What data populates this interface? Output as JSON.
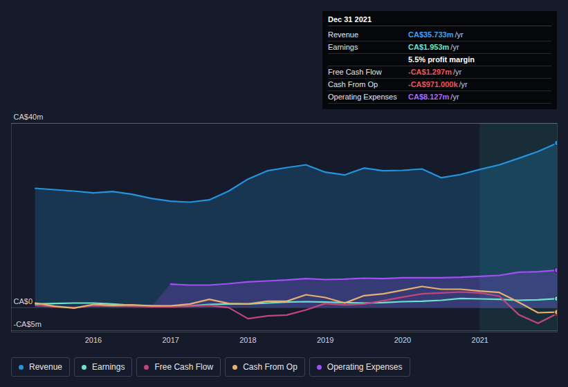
{
  "chart_data": {
    "type": "line",
    "x": [
      2015.25,
      2015.5,
      2015.75,
      2016.0,
      2016.25,
      2016.5,
      2016.75,
      2017.0,
      2017.25,
      2017.5,
      2017.75,
      2018.0,
      2018.25,
      2018.5,
      2018.75,
      2019.0,
      2019.25,
      2019.5,
      2019.75,
      2020.0,
      2020.25,
      2020.5,
      2020.75,
      2021.0,
      2021.25,
      2021.5,
      2021.75,
      2022.0
    ],
    "xlim": [
      2014.94,
      2022.0
    ],
    "xticks": [
      2016,
      2017,
      2018,
      2019,
      2020,
      2021
    ],
    "ylim": [
      -5.3,
      40
    ],
    "yticks": [
      {
        "value": -5,
        "label": "-CA$5m"
      },
      {
        "value": 0,
        "label": "CA$0"
      },
      {
        "value": 40,
        "label": "CA$40m"
      }
    ],
    "grid": true,
    "legend": "bottom",
    "shaded_range": [
      2021,
      2022.0
    ],
    "series": [
      {
        "name": "Revenue",
        "color": "#2394df",
        "type": "area",
        "values": [
          25.9,
          25.6,
          25.3,
          24.9,
          25.2,
          24.6,
          23.7,
          23.1,
          22.9,
          23.4,
          25.3,
          27.9,
          29.7,
          30.4,
          31.0,
          29.4,
          28.8,
          30.3,
          29.7,
          29.8,
          30.1,
          28.2,
          28.9,
          30.0,
          31.0,
          32.4,
          33.9,
          35.733
        ]
      },
      {
        "name": "Earnings",
        "color": "#6fe3c8",
        "type": "line",
        "values": [
          0.8,
          0.9,
          1.0,
          1.0,
          0.8,
          0.5,
          0.4,
          0.3,
          0.4,
          0.7,
          0.8,
          0.8,
          1.0,
          1.2,
          1.3,
          1.2,
          1.1,
          1.0,
          1.1,
          1.3,
          1.4,
          1.6,
          2.0,
          1.9,
          1.8,
          1.6,
          1.7,
          1.953
        ]
      },
      {
        "name": "Free Cash Flow",
        "color": "#c5457a",
        "type": "line",
        "values": [
          0.5,
          0.2,
          0.0,
          0.4,
          0.3,
          0.3,
          0.2,
          0.2,
          0.3,
          0.5,
          0.0,
          -2.4,
          -1.8,
          -1.6,
          -0.5,
          0.9,
          0.6,
          0.8,
          1.5,
          2.3,
          3.0,
          3.2,
          3.4,
          3.2,
          2.5,
          -1.5,
          -3.4,
          -1.297
        ]
      },
      {
        "name": "Cash From Op",
        "color": "#e8b06e",
        "type": "line",
        "values": [
          1.0,
          0.3,
          -0.1,
          0.7,
          0.5,
          0.6,
          0.4,
          0.4,
          0.8,
          1.8,
          0.9,
          0.8,
          1.4,
          1.4,
          2.8,
          2.2,
          1.0,
          2.6,
          3.0,
          3.8,
          4.6,
          4.0,
          4.0,
          3.6,
          3.3,
          1.2,
          -1.1,
          -0.971
        ]
      },
      {
        "name": "Operating Expenses",
        "color": "#a44ef5",
        "type": "area",
        "values": [
          null,
          null,
          null,
          null,
          null,
          null,
          null,
          5.1,
          4.9,
          4.9,
          5.2,
          5.6,
          5.8,
          6.0,
          6.3,
          6.1,
          6.2,
          6.4,
          6.3,
          6.5,
          6.5,
          6.5,
          6.6,
          6.8,
          7.0,
          7.7,
          7.8,
          8.127
        ]
      }
    ],
    "annotation": {
      "title": "Dec 31 2021",
      "rows": [
        {
          "label": "Revenue",
          "value": "CA$35.733m",
          "unit": "/yr",
          "color": "#3fa3f0"
        },
        {
          "label": "Earnings",
          "value": "CA$1.953m",
          "unit": "/yr",
          "color": "#6fe3c8"
        },
        {
          "value": "5.5% profit margin",
          "color": "#ffffff"
        },
        {
          "label": "Free Cash Flow",
          "value": "-CA$1.297m",
          "unit": "/yr",
          "color": "#f0555a"
        },
        {
          "label": "Cash From Op",
          "value": "-CA$971.000k",
          "unit": "/yr",
          "color": "#f0555a"
        },
        {
          "label": "Operating Expenses",
          "value": "CA$8.127m",
          "unit": "/yr",
          "color": "#b067f5"
        }
      ]
    }
  }
}
